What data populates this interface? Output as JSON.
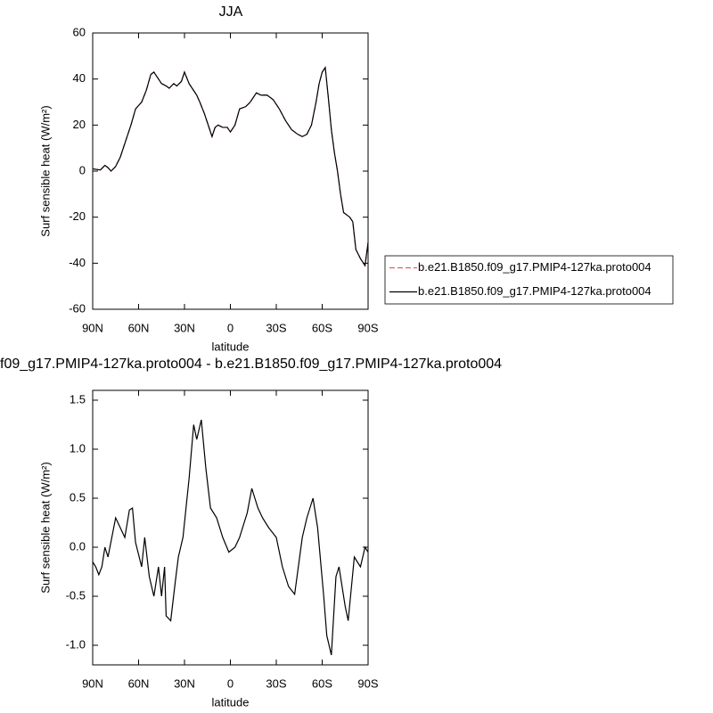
{
  "chart_data": [
    {
      "type": "line",
      "title": "JJA",
      "xlabel": "latitude",
      "ylabel": "Surf sensible heat (W/m²)",
      "x": [
        90,
        85,
        82,
        80,
        78,
        75,
        72,
        68,
        65,
        62,
        58,
        55,
        52,
        50,
        48,
        45,
        42,
        40,
        37,
        35,
        32,
        30,
        27,
        25,
        22,
        20,
        17,
        15,
        12,
        10,
        8,
        5,
        2,
        0,
        -3,
        -6,
        -10,
        -13,
        -17,
        -20,
        -24,
        -28,
        -32,
        -36,
        -40,
        -44,
        -47,
        -50,
        -53,
        -56,
        -58,
        -60,
        -62,
        -64,
        -66,
        -68,
        -70,
        -72,
        -74,
        -76,
        -78,
        -80,
        -82,
        -85,
        -88,
        -90
      ],
      "series": [
        {
          "name": "b.e21.B1850.f09_g17.PMIP4-127ka.proto004",
          "color": "#e06060",
          "linestyle": "dashed",
          "values": [
            1,
            0.5,
            2.5,
            1.5,
            0,
            2,
            6,
            14,
            20,
            27,
            30,
            35,
            42,
            43,
            41,
            38,
            37,
            36,
            38,
            37,
            39,
            43,
            38,
            36,
            33,
            30,
            25,
            21,
            15,
            19,
            20,
            19,
            19,
            17,
            20,
            27,
            28,
            30,
            34,
            33,
            33,
            31,
            27,
            22,
            18,
            16,
            15,
            16,
            20,
            30,
            38,
            43,
            45,
            32,
            18,
            8,
            0,
            -10,
            -18,
            -19,
            -20,
            -22,
            -34,
            -38,
            -41,
            -31
          ]
        },
        {
          "name": "b.e21.B1850.f09_g17.PMIP4-127ka.proto004",
          "color": "#000000",
          "linestyle": "solid",
          "values": [
            1,
            0.5,
            2.5,
            1.5,
            0,
            2,
            6,
            14,
            20,
            27,
            30,
            35,
            42,
            43,
            41,
            38,
            37,
            36,
            38,
            37,
            39,
            43,
            38,
            36,
            33,
            30,
            25,
            21,
            15,
            19,
            20,
            19,
            19,
            17,
            20,
            27,
            28,
            30,
            34,
            33,
            33,
            31,
            27,
            22,
            18,
            16,
            15,
            16,
            20,
            30,
            38,
            43,
            45,
            32,
            18,
            8,
            0,
            -10,
            -18,
            -19,
            -20,
            -22,
            -34,
            -38,
            -41,
            -31
          ]
        }
      ],
      "xlim": [
        90,
        -90
      ],
      "xticks": [
        {
          "value": 90,
          "label": "90N"
        },
        {
          "value": 60,
          "label": "60N"
        },
        {
          "value": 30,
          "label": "30N"
        },
        0,
        {
          "value": -30,
          "label": "30S"
        },
        {
          "value": -60,
          "label": "60S"
        },
        {
          "value": -90,
          "label": "90S"
        }
      ],
      "ylim": [
        -60,
        60
      ],
      "yticks": [
        -60,
        -40,
        -20,
        0,
        20,
        40,
        60
      ],
      "legend": "right"
    },
    {
      "type": "line",
      "title": "f09_g17.PMIP4-127ka.proto004 - b.e21.B1850.f09_g17.PMIP4-127ka.proto004",
      "xlabel": "latitude",
      "ylabel": "Surf sensible heat (W/m²)",
      "x": [
        90,
        88,
        86,
        84,
        82,
        80,
        75,
        69,
        66,
        64,
        62,
        58,
        56,
        53,
        50,
        47,
        45,
        43,
        42,
        39,
        36,
        34,
        31,
        27,
        24,
        22,
        19,
        16,
        13,
        9,
        5,
        1,
        -3,
        -6,
        -11,
        -14,
        -18,
        -21,
        -25,
        -30,
        -34,
        -38,
        -42,
        -47,
        -50,
        -54,
        -57,
        -61,
        -63,
        -66,
        -69,
        -71,
        -75,
        -77,
        -81,
        -85,
        -88,
        -90
      ],
      "series": [
        {
          "color": "#000000",
          "linestyle": "solid",
          "values": [
            -0.15,
            -0.2,
            -0.28,
            -0.2,
            0,
            -0.1,
            0.3,
            0.1,
            0.38,
            0.4,
            0.05,
            -0.2,
            0.1,
            -0.3,
            -0.5,
            -0.2,
            -0.5,
            -0.2,
            -0.7,
            -0.75,
            -0.35,
            -0.1,
            0.1,
            0.7,
            1.25,
            1.1,
            1.3,
            0.8,
            0.4,
            0.3,
            0.1,
            -0.05,
            0,
            0.1,
            0.35,
            0.6,
            0.4,
            0.3,
            0.2,
            0.1,
            -0.2,
            -0.4,
            -0.48,
            0.1,
            0.3,
            0.5,
            0.2,
            -0.5,
            -0.9,
            -1.1,
            -0.3,
            -0.2,
            -0.6,
            -0.75,
            -0.1,
            -0.2,
            0,
            -0.05
          ]
        }
      ],
      "xlim": [
        90,
        -90
      ],
      "xticks": [
        {
          "value": 90,
          "label": "90N"
        },
        {
          "value": 60,
          "label": "60N"
        },
        {
          "value": 30,
          "label": "30N"
        },
        0,
        {
          "value": -30,
          "label": "30S"
        },
        {
          "value": -60,
          "label": "60S"
        },
        {
          "value": -90,
          "label": "90S"
        }
      ],
      "ylim": [
        -1.2,
        1.6
      ],
      "yticks": [
        {
          "value": -1.0,
          "label": "-1.0"
        },
        -0.5,
        {
          "value": 0,
          "label": "0.0"
        },
        0.5,
        {
          "value": 1.0,
          "label": "1.0"
        },
        1.5
      ]
    }
  ]
}
